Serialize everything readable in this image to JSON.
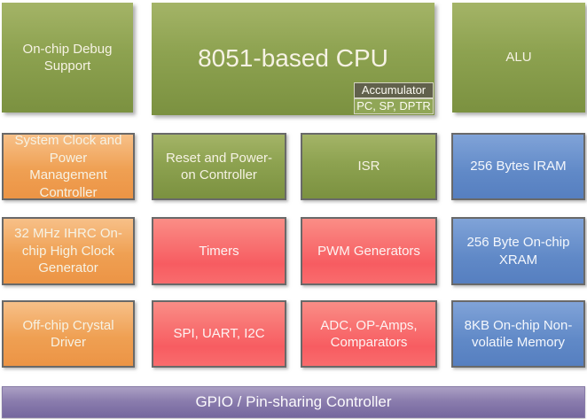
{
  "colors": {
    "green": "#8ba24f",
    "orange": "#f0a55d",
    "red": "#f8636a",
    "blue": "#6d93cd",
    "purple": "#8577a7",
    "block_border": "#696969",
    "accumulator_dark": "#61614c",
    "text_light": "#f6f2e4"
  },
  "rows": [
    {
      "blocks": [
        {
          "label": "On-chip Debug Support",
          "color": "green"
        },
        {
          "label": "8051-based CPU",
          "color": "green",
          "sub_blocks": [
            {
              "label": "Accumulator"
            },
            {
              "label": "PC, SP, DPTR"
            }
          ]
        },
        {
          "label": "ALU",
          "color": "green"
        }
      ]
    },
    {
      "blocks": [
        {
          "label": "System Clock and Power Management Controller",
          "color": "orange"
        },
        {
          "label": "Reset and Power-on Controller",
          "color": "green"
        },
        {
          "label": "ISR",
          "color": "green"
        },
        {
          "label": "256 Bytes IRAM",
          "color": "blue"
        }
      ]
    },
    {
      "blocks": [
        {
          "label": "32 MHz IHRC On-chip High Clock Generator",
          "color": "orange"
        },
        {
          "label": "Timers",
          "color": "red"
        },
        {
          "label": "PWM Generators",
          "color": "red"
        },
        {
          "label": "256 Byte On-chip XRAM",
          "color": "blue"
        }
      ]
    },
    {
      "blocks": [
        {
          "label": "Off-chip Crystal Driver",
          "color": "orange"
        },
        {
          "label": "SPI, UART, I2C",
          "color": "red"
        },
        {
          "label": "ADC, OP-Amps, Comparators",
          "color": "red"
        },
        {
          "label": "8KB On-chip Non-volatile Memory",
          "color": "blue"
        }
      ]
    }
  ],
  "footer": {
    "label": "GPIO / Pin-sharing Controller",
    "color": "purple"
  }
}
